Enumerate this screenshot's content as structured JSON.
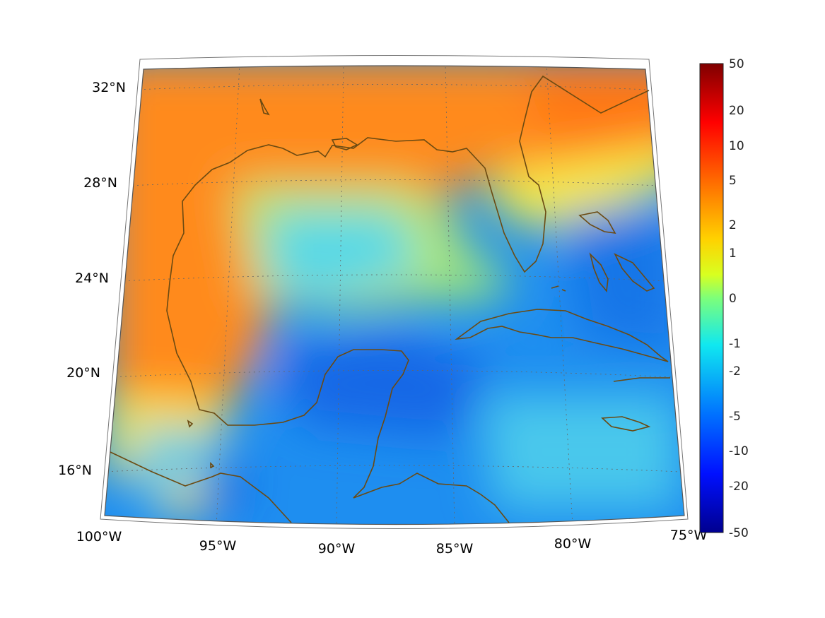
{
  "map": {
    "projection": "conic",
    "lon_range": [
      -100,
      -75
    ],
    "lat_range": [
      14,
      33
    ],
    "lon_labels": [
      "100°W",
      "95°W",
      "90°W",
      "85°W",
      "80°W",
      "75°W"
    ],
    "lat_labels": [
      "16°N",
      "20°N",
      "24°N",
      "28°N",
      "32°N"
    ],
    "coastline_color": "#6b4a12",
    "gridlines": "dotted"
  },
  "colorbar": {
    "colormap": "jet",
    "scale": "symmetric-log",
    "tick_labels": [
      "50",
      "20",
      "10",
      "5",
      "2",
      "1",
      "0",
      "-1",
      "-2",
      "-5",
      "-10",
      "-20",
      "-50"
    ],
    "range": [
      -50,
      50
    ]
  },
  "colors": {
    "orange": "#ff8a1a",
    "yellow": "#f5e84a",
    "cyan": "#2fd2f0",
    "blue": "#1f86ef",
    "coast": "#6b4a12"
  }
}
